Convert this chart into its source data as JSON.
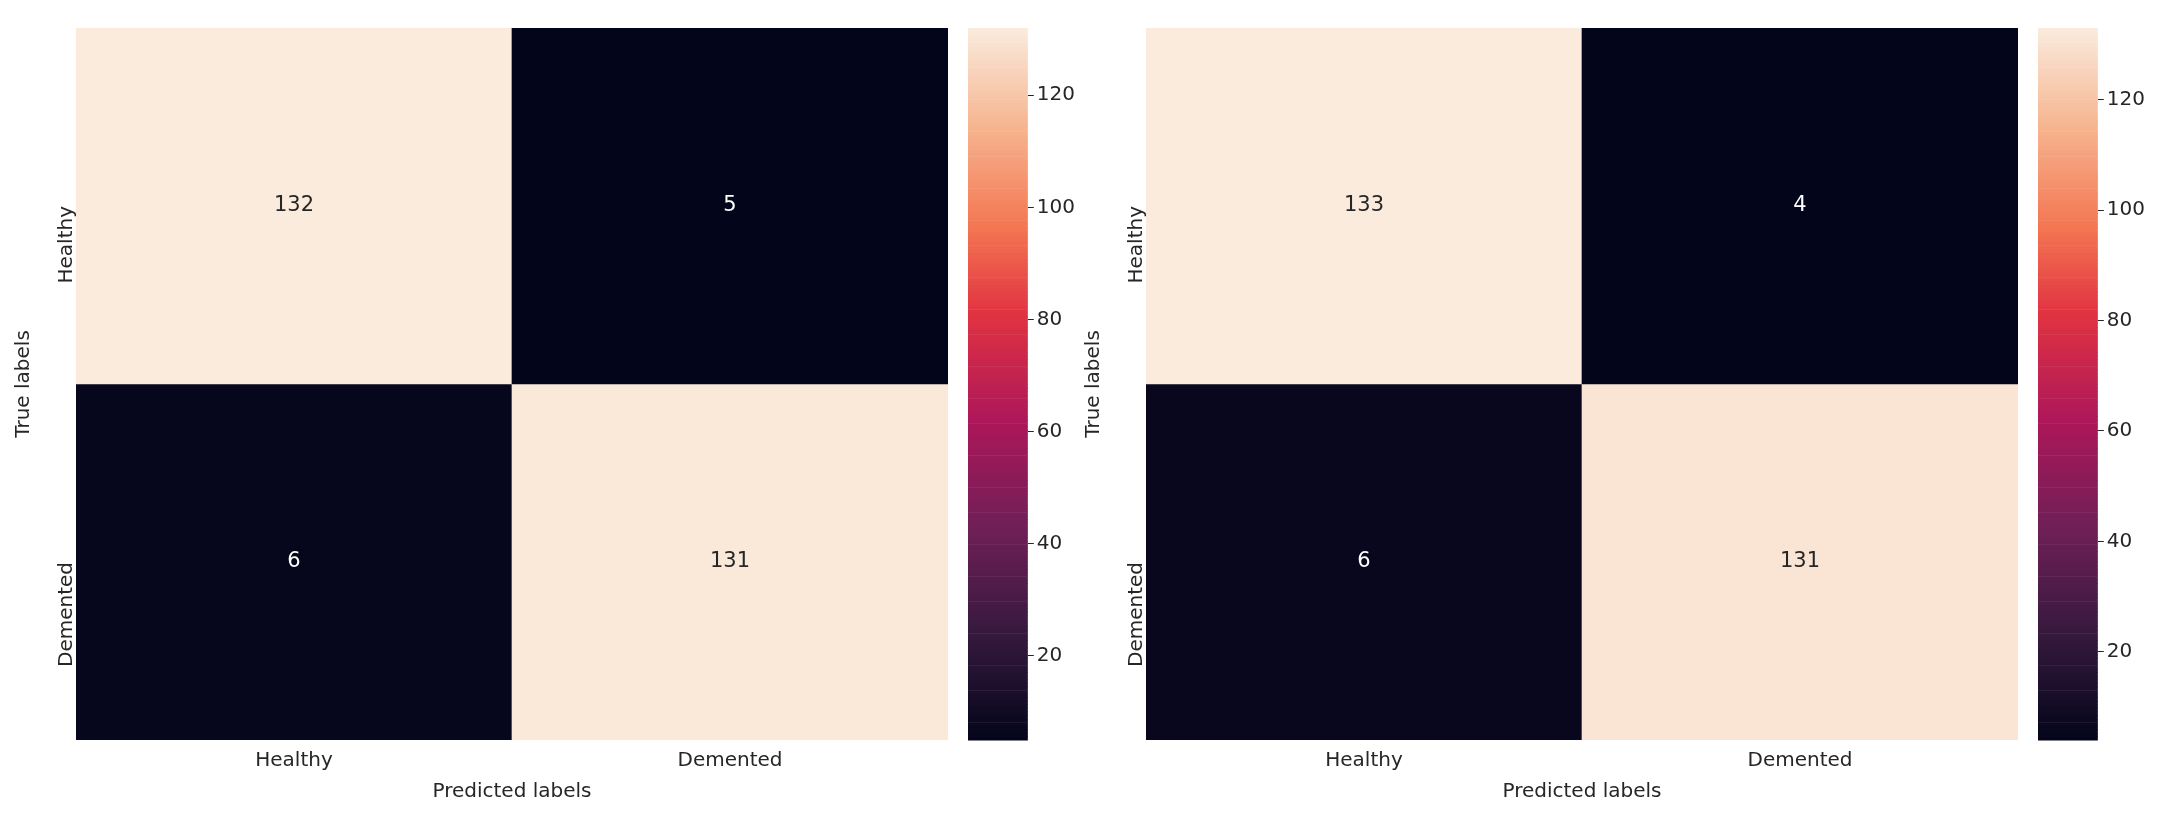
{
  "chart_data": [
    {
      "type": "heatmap",
      "categories": [
        "Healthy",
        "Demented"
      ],
      "y_categories": [
        "Healthy",
        "Demented"
      ],
      "cells": [
        [
          132,
          5
        ],
        [
          6,
          131
        ]
      ],
      "data_labels": true,
      "xlabel": "Predicted labels",
      "ylabel": "True labels",
      "clim": [
        5,
        132
      ],
      "cticks": [
        20,
        40,
        60,
        80,
        100,
        120
      ]
    },
    {
      "type": "heatmap",
      "categories": [
        "Healthy",
        "Demented"
      ],
      "y_categories": [
        "Healthy",
        "Demented"
      ],
      "cells": [
        [
          133,
          4
        ],
        [
          6,
          131
        ]
      ],
      "data_labels": true,
      "xlabel": "Predicted labels",
      "ylabel": "True labels",
      "clim": [
        4,
        133
      ],
      "cticks": [
        20,
        40,
        60,
        80,
        100,
        120
      ]
    }
  ]
}
